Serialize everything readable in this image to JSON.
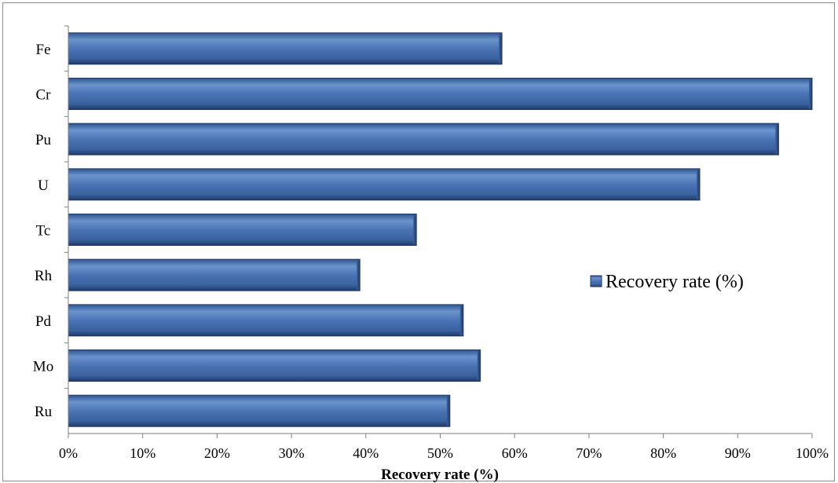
{
  "chart_data": {
    "type": "bar",
    "orientation": "horizontal",
    "categories": [
      "Ru",
      "Mo",
      "Pd",
      "Rh",
      "Tc",
      "U",
      "Pu",
      "Cr",
      "Fe"
    ],
    "series": [
      {
        "name": "Recovery rate (%)",
        "values": [
          51.3,
          55.4,
          53.1,
          39.2,
          46.8,
          84.9,
          95.5,
          100,
          58.3
        ]
      }
    ],
    "x_ticks": [
      "0%",
      "10%",
      "20%",
      "30%",
      "40%",
      "50%",
      "60%",
      "70%",
      "80%",
      "90%",
      "100%"
    ],
    "xlabel": "Recovery rate (%)",
    "ylabel": "",
    "xlim": [
      0,
      100
    ],
    "grid": false,
    "legend": "right",
    "colors": {
      "bar": "#4a74b5",
      "bar_dark": "#2a4a82",
      "bar_light": "#7fa3d6"
    }
  }
}
